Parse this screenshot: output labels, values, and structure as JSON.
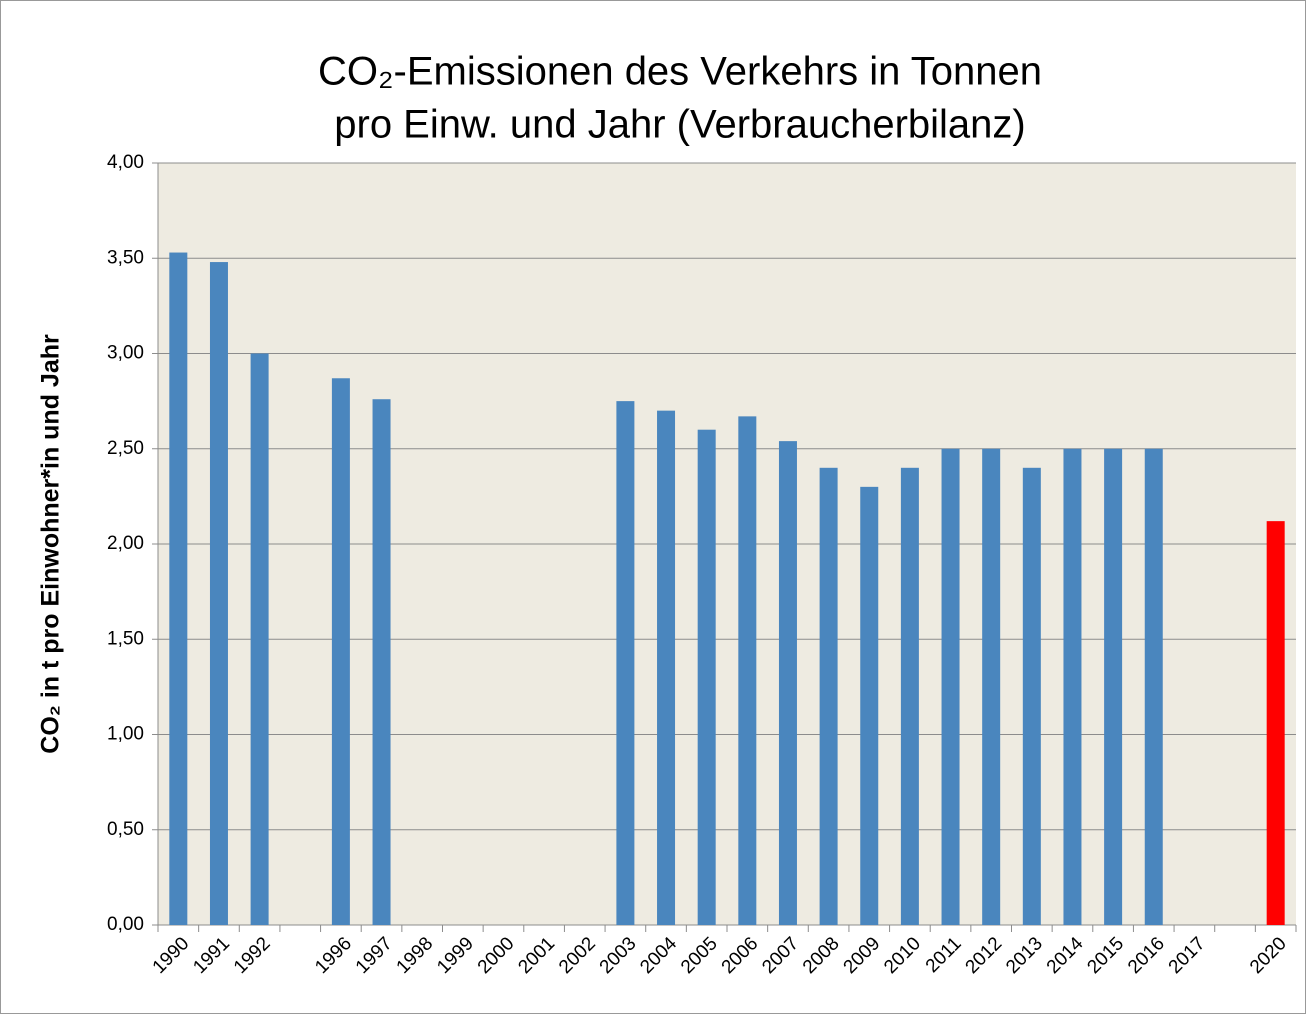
{
  "chart_data": {
    "type": "bar",
    "title": [
      "CO₂-Emissionen des Verkehrs in Tonnen",
      "pro Einw. und Jahr (Verbraucherbilanz)"
    ],
    "y_label": "CO₂ in t pro Einwohner*in und Jahr",
    "categories": [
      "1990",
      "1991",
      "1992",
      null,
      "1996",
      "1997",
      "1998",
      "1999",
      "2000",
      "2001",
      "2002",
      "2003",
      "2004",
      "2005",
      "2006",
      "2007",
      "2008",
      "2009",
      "2010",
      "2011",
      "2012",
      "2013",
      "2014",
      "2015",
      "2016",
      "2017",
      null,
      "2020"
    ],
    "values": [
      3.53,
      3.48,
      3.0,
      null,
      2.87,
      2.76,
      null,
      null,
      null,
      null,
      null,
      2.75,
      2.7,
      2.6,
      2.67,
      2.54,
      2.4,
      2.3,
      2.4,
      2.5,
      2.5,
      2.4,
      2.5,
      2.5,
      2.5,
      null,
      null,
      2.12
    ],
    "color": "#4a86be",
    "highlight": {
      "index": 27,
      "color": "#ff0000"
    },
    "ylim": [
      0,
      4
    ],
    "yticks": [
      {
        "value": 0,
        "label": "0,00"
      },
      {
        "value": 0.5,
        "label": "0,50"
      },
      {
        "value": 1,
        "label": "1,00"
      },
      {
        "value": 1.5,
        "label": "1,50"
      },
      {
        "value": 2,
        "label": "2,00"
      },
      {
        "value": 2.5,
        "label": "2,50"
      },
      {
        "value": 3,
        "label": "3,00"
      },
      {
        "value": 3.5,
        "label": "3,50"
      },
      {
        "value": 4,
        "label": "4,00"
      }
    ],
    "grid": true
  }
}
